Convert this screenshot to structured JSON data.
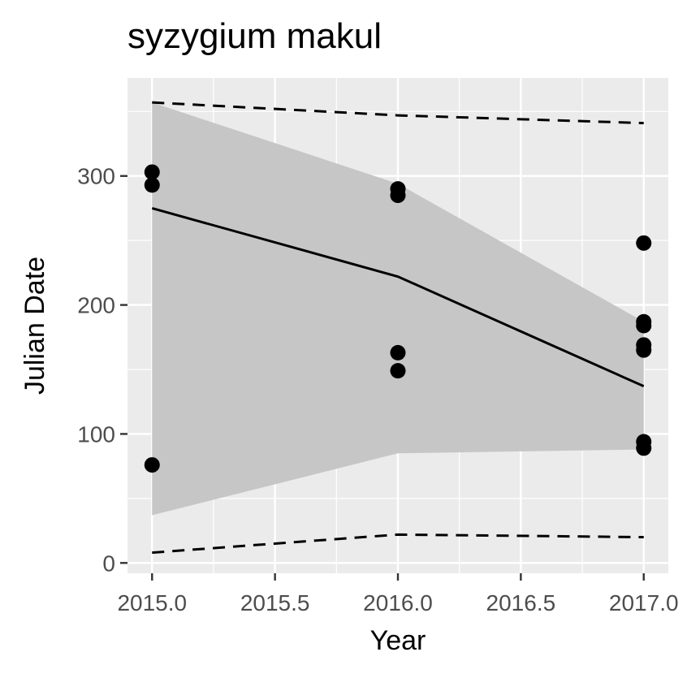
{
  "chart_data": {
    "type": "scatter",
    "title": "syzygium makul",
    "xlabel": "Year",
    "ylabel": "Julian Date",
    "xlim": [
      2014.9,
      2017.1
    ],
    "ylim": [
      -8,
      376
    ],
    "x_ticks": [
      2015.0,
      2015.5,
      2016.0,
      2016.5,
      2017.0
    ],
    "x_tick_labels": [
      "2015.0",
      "2015.5",
      "2016.0",
      "2016.5",
      "2017.0"
    ],
    "y_ticks": [
      0,
      100,
      200,
      300
    ],
    "y_tick_labels": [
      "0",
      "100",
      "200",
      "300"
    ],
    "grid": true,
    "points": [
      {
        "x": 2015,
        "y": 303
      },
      {
        "x": 2015,
        "y": 293
      },
      {
        "x": 2015,
        "y": 76
      },
      {
        "x": 2016,
        "y": 290
      },
      {
        "x": 2016,
        "y": 285
      },
      {
        "x": 2016,
        "y": 163
      },
      {
        "x": 2016,
        "y": 149
      },
      {
        "x": 2017,
        "y": 248
      },
      {
        "x": 2017,
        "y": 187
      },
      {
        "x": 2017,
        "y": 184
      },
      {
        "x": 2017,
        "y": 169
      },
      {
        "x": 2017,
        "y": 165
      },
      {
        "x": 2017,
        "y": 94
      },
      {
        "x": 2017,
        "y": 89
      }
    ],
    "fit_line": {
      "x": [
        2015,
        2016,
        2017
      ],
      "y": [
        275,
        222,
        137
      ]
    },
    "confidence_band": {
      "x": [
        2015,
        2016,
        2017
      ],
      "lower": [
        37,
        85,
        88
      ],
      "upper": [
        357,
        294,
        187
      ]
    },
    "prediction_bounds": {
      "x": [
        2015,
        2016,
        2017
      ],
      "lower": [
        8,
        22,
        20
      ],
      "upper": [
        357,
        347,
        341
      ]
    },
    "colors": {
      "panel": "#ebebeb",
      "grid": "#ffffff",
      "points": "#000000",
      "band": "#c6c6c6",
      "line": "#000000",
      "tick_text": "#4d4d4d"
    }
  }
}
